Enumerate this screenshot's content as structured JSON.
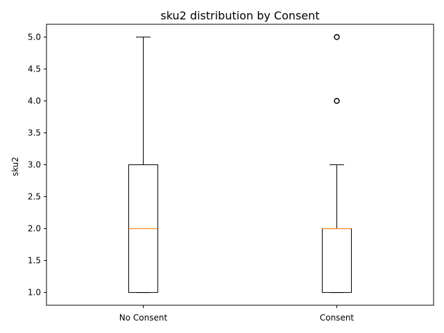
{
  "chart_data": {
    "type": "box",
    "title": "sku2 distribution by Consent",
    "xlabel": "",
    "ylabel": "sku2",
    "categories": [
      "No Consent",
      "Consent"
    ],
    "ylim": [
      0.8,
      5.2
    ],
    "yticks": [
      1.0,
      1.5,
      2.0,
      2.5,
      3.0,
      3.5,
      4.0,
      4.5,
      5.0
    ],
    "ytick_labels": [
      "1.0",
      "1.5",
      "2.0",
      "2.5",
      "3.0",
      "3.5",
      "4.0",
      "4.5",
      "5.0"
    ],
    "boxes": [
      {
        "category": "No Consent",
        "whisker_low": 1.0,
        "q1": 1.0,
        "median": 2.0,
        "q3": 3.0,
        "whisker_high": 5.0,
        "outliers": []
      },
      {
        "category": "Consent",
        "whisker_low": 1.0,
        "q1": 1.0,
        "median": 2.0,
        "q3": 2.0,
        "whisker_high": 3.0,
        "outliers": [
          4.0,
          5.0
        ]
      }
    ],
    "grid": false,
    "colors": {
      "box": "#000000",
      "median": "#ff7f0e",
      "outlier": "#000000",
      "background": "#ffffff"
    }
  }
}
